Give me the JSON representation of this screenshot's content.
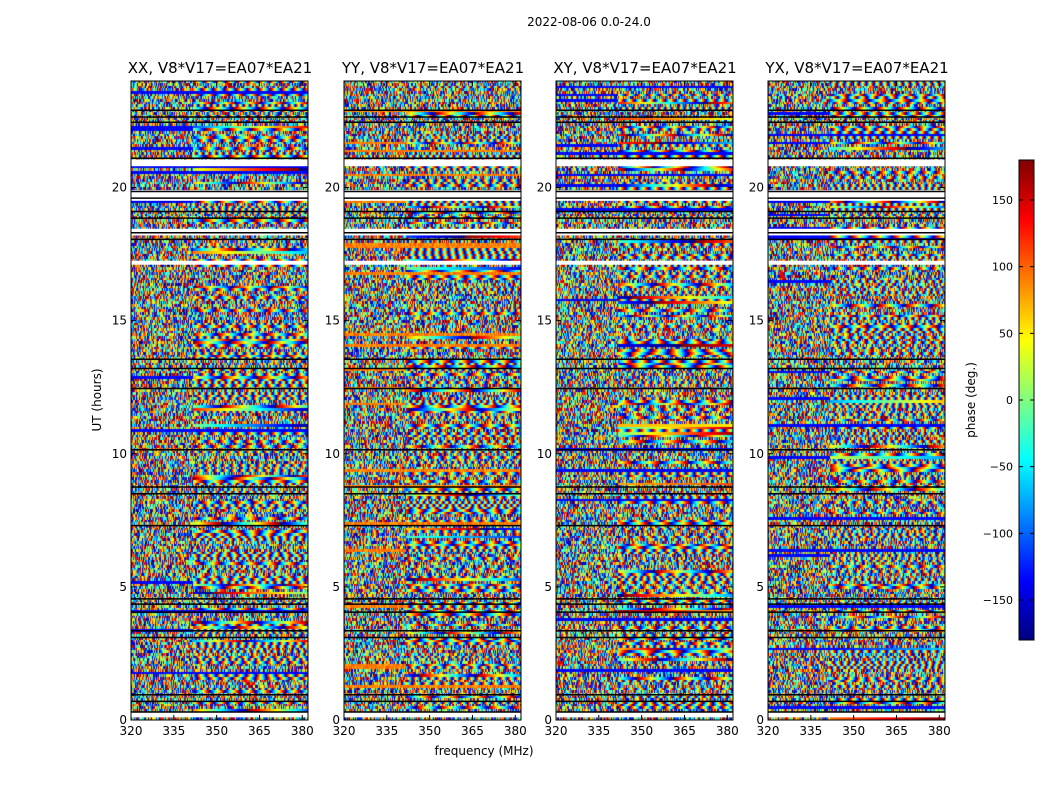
{
  "chart_data": {
    "type": "heatmap",
    "suptitle": "2022-08-06 0.0-24.0",
    "xlabel": "frequency (MHz)",
    "ylabel": "UT (hours)",
    "xlim": [
      320,
      382
    ],
    "ylim": [
      0,
      24
    ],
    "xticks": [
      320,
      335,
      350,
      365,
      380
    ],
    "yticks": [
      0,
      5,
      10,
      15,
      20
    ],
    "colormap": "jet",
    "panels": [
      {
        "title": "XX, V8*V17=EA07*EA21"
      },
      {
        "title": "YY, V8*V17=EA07*EA21"
      },
      {
        "title": "XY, V8*V17=EA07*EA21"
      },
      {
        "title": "YX, V8*V17=EA07*EA21"
      }
    ],
    "colorbar": {
      "label": "phase (deg.)",
      "range": [
        -180,
        180
      ],
      "ticks": [
        150,
        100,
        50,
        0,
        -50,
        -100,
        -150
      ],
      "tick_labels": [
        "150",
        "100",
        "50",
        "0",
        "−50",
        "−100",
        "−150"
      ],
      "colors": [
        "#00007f",
        "#0000ff",
        "#007fff",
        "#00ffff",
        "#7fff7f",
        "#ffff00",
        "#ff7f00",
        "#ff0000",
        "#7f0000"
      ]
    },
    "flagged_hours": [
      0.3,
      0.7,
      0.95,
      3.1,
      3.35,
      4.05,
      4.35,
      4.55,
      7.3,
      8.5,
      8.75,
      10.15,
      12.45,
      13.2,
      13.55,
      18.05,
      18.3,
      18.85,
      19.1,
      19.6,
      19.85,
      21.1,
      22.45,
      22.65,
      22.9
    ],
    "flag_band_hours": [
      [
        0.1,
        0.3
      ],
      [
        17.1,
        17.25
      ],
      [
        18.2,
        18.45
      ],
      [
        19.5,
        19.9
      ],
      [
        20.8,
        21.05
      ]
    ]
  }
}
